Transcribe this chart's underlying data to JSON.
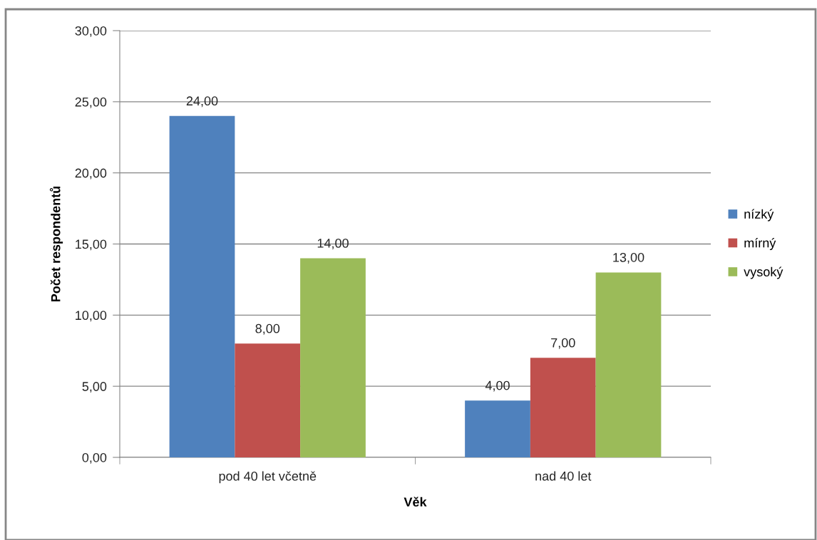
{
  "chart_data": {
    "type": "bar",
    "xlabel": "Věk",
    "ylabel": "Počet respondentů",
    "categories": [
      "pod 40 let včetně",
      "nad 40 let"
    ],
    "series": [
      {
        "name": "nízký",
        "color": "#4f81bd",
        "values": [
          24,
          4
        ],
        "value_labels": [
          "24,00",
          "4,00"
        ]
      },
      {
        "name": "mírný",
        "color": "#c0504d",
        "values": [
          8,
          7
        ],
        "value_labels": [
          "8,00",
          "7,00"
        ]
      },
      {
        "name": "vysoký",
        "color": "#9bbb59",
        "values": [
          14,
          13
        ],
        "value_labels": [
          "14,00",
          "13,00"
        ]
      }
    ],
    "ylim": [
      0,
      30
    ],
    "yticks": [
      {
        "value": 0,
        "label": "0,00"
      },
      {
        "value": 5,
        "label": "5,00"
      },
      {
        "value": 10,
        "label": "10,00"
      },
      {
        "value": 15,
        "label": "15,00"
      },
      {
        "value": 20,
        "label": "20,00"
      },
      {
        "value": 25,
        "label": "25,00"
      },
      {
        "value": 30,
        "label": "30,00"
      }
    ],
    "grid": "y",
    "legend": "right"
  }
}
